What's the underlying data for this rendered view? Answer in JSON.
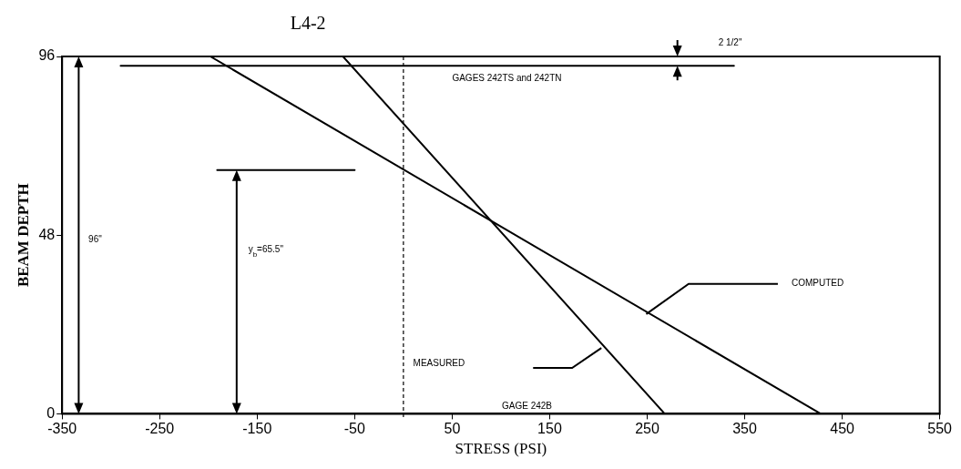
{
  "chart_data": {
    "type": "line",
    "title": "L4-2",
    "xlabel": "STRESS (PSI)",
    "ylabel": "BEAM DEPTH",
    "series": [
      {
        "color": "#000000",
        "x": [
          -62,
          268
        ],
        "values": [
          96,
          0
        ]
      },
      {
        "color": "#000000",
        "x": [
          -198,
          428
        ],
        "values": [
          96,
          0
        ]
      },
      {
        "color": "#000000",
        "x": [
          -290,
          339
        ],
        "values": [
          93.5,
          93.5
        ]
      },
      {
        "color": "#000000",
        "x": [
          -191,
          -50
        ],
        "values": [
          65.5,
          65.5
        ]
      }
    ],
    "xlim": [
      -350,
      550
    ],
    "xticks": [
      -350,
      -250,
      -150,
      -50,
      50,
      150,
      250,
      350,
      450,
      550
    ],
    "ylim": [
      0,
      96
    ],
    "yticks": [
      0,
      48,
      96
    ],
    "ref_lines": [
      {
        "axis": "x",
        "value": 0,
        "label": null,
        "color": "#000000",
        "line_style": "dashed"
      }
    ],
    "annotations": [
      "GAGES 242TS and 242TN",
      "2 1/2\"",
      "96\"",
      "y$_{b}$=65.5\"",
      "MEASURED",
      "COMPUTED",
      "GAGE 242B"
    ],
    "grid": false,
    "legend": false,
    "marker": "none",
    "line_style": "solid"
  }
}
